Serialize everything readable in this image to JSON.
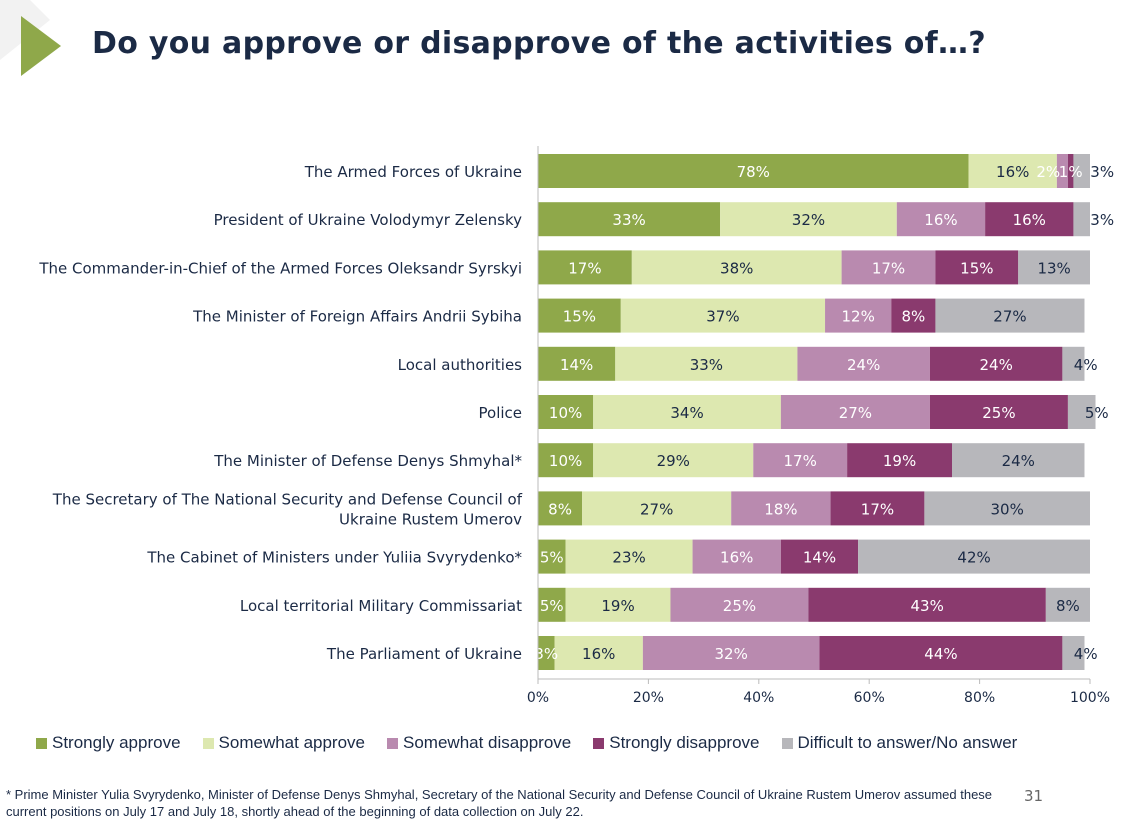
{
  "header": {
    "title": "Do you approve or disapprove of the activities of…?"
  },
  "chart_data": {
    "type": "bar",
    "orientation": "horizontal-stacked-100",
    "title": "Do you approve or disapprove of the activities of…?",
    "xlim": [
      0,
      100
    ],
    "x_ticks": [
      "0%",
      "20%",
      "40%",
      "60%",
      "80%",
      "100%"
    ],
    "categories": [
      "The Armed Forces of Ukraine",
      "President of Ukraine Volodymyr Zelensky",
      "The Commander-in-Chief of the Armed Forces Oleksandr Syrskyi",
      "The Minister of Foreign Affairs Andrii Sybiha",
      "Local authorities",
      "Police",
      "The Minister of Defense Denys Shmyhal*",
      "The Secretary of The National Security and Defense Council of Ukraine Rustem Umerov",
      "The Cabinet of Ministers under Yuliia Svyrydenko*",
      "Local territorial Military Commissariat",
      "The Parliament of Ukraine"
    ],
    "series": [
      {
        "name": "Strongly approve",
        "color": "#8fa84a",
        "label_color": "#ffffff",
        "values": [
          78,
          33,
          17,
          15,
          14,
          10,
          10,
          8,
          5,
          5,
          3
        ]
      },
      {
        "name": "Somewhat approve",
        "color": "#dde8b0",
        "label_color": "#1b2a45",
        "values": [
          16,
          32,
          38,
          37,
          33,
          34,
          29,
          27,
          23,
          19,
          16
        ]
      },
      {
        "name": "Somewhat disapprove",
        "color": "#b98aaf",
        "label_color": "#ffffff",
        "values": [
          2,
          16,
          17,
          12,
          24,
          27,
          17,
          18,
          16,
          25,
          32
        ]
      },
      {
        "name": "Strongly disapprove",
        "color": "#8a3a6e",
        "label_color": "#ffffff",
        "values": [
          1,
          16,
          15,
          8,
          24,
          25,
          19,
          17,
          14,
          43,
          44
        ]
      },
      {
        "name": "Difficult to answer/No answer",
        "color": "#b7b7bb",
        "label_color": "#1b2a45",
        "values": [
          3,
          3,
          13,
          27,
          4,
          5,
          24,
          30,
          42,
          8,
          4
        ]
      }
    ],
    "legend_position": "bottom"
  },
  "footnote": "* Prime Minister Yulia Svyrydenko, Minister of Defense Denys Shmyhal, Secretary of the National Security and Defense Council of Ukraine Rustem Umerov assumed these current positions on July 17 and July 18, shortly ahead of the beginning of data collection on July 22.",
  "page_number": "31"
}
